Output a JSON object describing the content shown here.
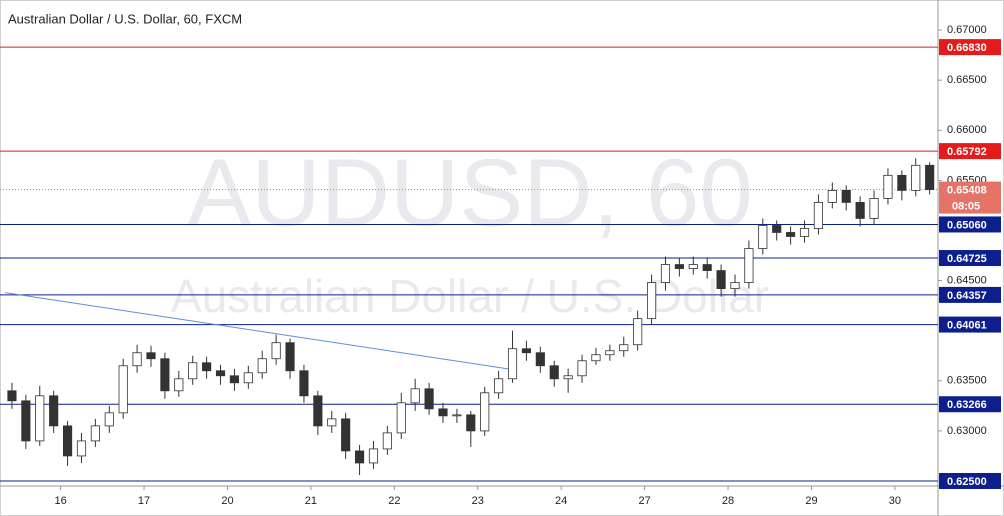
{
  "chart_data": {
    "type": "candlestick",
    "title": "Australian Dollar / U.S. Dollar, 60, FXCM",
    "watermark": "AUDUSD, 60",
    "watermark_subtitle": "Australian Dollar / U.S. Dollar",
    "categories": [
      null,
      null,
      null,
      null,
      "16",
      null,
      null,
      null,
      null,
      null,
      "17",
      null,
      null,
      null,
      null,
      null,
      "20",
      null,
      null,
      null,
      null,
      null,
      "21",
      null,
      null,
      null,
      null,
      null,
      "22",
      null,
      null,
      null,
      null,
      null,
      "23",
      null,
      null,
      null,
      null,
      null,
      "24",
      null,
      null,
      null,
      null,
      null,
      "27",
      null,
      null,
      null,
      null,
      null,
      "28",
      null,
      null,
      null,
      null,
      null,
      "29",
      null,
      null,
      null,
      null,
      null,
      "30",
      null,
      null
    ],
    "open": [
      0.634,
      0.633,
      0.629,
      0.6335,
      0.6305,
      0.6275,
      0.629,
      0.6305,
      0.6318,
      0.6365,
      0.6378,
      0.6372,
      0.634,
      0.6352,
      0.6368,
      0.636,
      0.6355,
      0.6348,
      0.6358,
      0.6372,
      0.6388,
      0.636,
      0.6335,
      0.6305,
      0.6312,
      0.628,
      0.6268,
      0.6282,
      0.6298,
      0.6328,
      0.6342,
      0.6322,
      0.6315,
      0.6316,
      0.63,
      0.6338,
      0.6352,
      0.6382,
      0.6378,
      0.6365,
      0.6352,
      0.6355,
      0.637,
      0.6376,
      0.638,
      0.6386,
      0.6412,
      0.6448,
      0.6466,
      0.6462,
      0.6466,
      0.646,
      0.6442,
      0.6448,
      0.6482,
      0.6505,
      0.6498,
      0.6494,
      0.6502,
      0.6528,
      0.654,
      0.6528,
      0.6512,
      0.6532,
      0.6555,
      0.654,
      0.6565
    ],
    "high": [
      0.6348,
      0.6336,
      0.6345,
      0.634,
      0.631,
      0.6298,
      0.6312,
      0.6325,
      0.6372,
      0.6386,
      0.6385,
      0.6378,
      0.636,
      0.6375,
      0.6374,
      0.6366,
      0.6362,
      0.6365,
      0.638,
      0.6396,
      0.6392,
      0.6366,
      0.634,
      0.632,
      0.6318,
      0.6286,
      0.629,
      0.6305,
      0.6338,
      0.6352,
      0.6348,
      0.6328,
      0.6322,
      0.632,
      0.6344,
      0.636,
      0.64,
      0.639,
      0.6384,
      0.637,
      0.6362,
      0.6376,
      0.6383,
      0.6386,
      0.6394,
      0.642,
      0.6456,
      0.6474,
      0.6472,
      0.6474,
      0.6472,
      0.6466,
      0.6456,
      0.649,
      0.6512,
      0.651,
      0.6504,
      0.651,
      0.6536,
      0.6548,
      0.6545,
      0.6534,
      0.654,
      0.6562,
      0.656,
      0.6572,
      0.6568
    ],
    "low": [
      0.6322,
      0.6282,
      0.6285,
      0.6298,
      0.6265,
      0.6268,
      0.6284,
      0.6298,
      0.6312,
      0.6358,
      0.6364,
      0.6332,
      0.6334,
      0.6346,
      0.6352,
      0.6346,
      0.634,
      0.6342,
      0.6352,
      0.6366,
      0.6352,
      0.6328,
      0.6296,
      0.6298,
      0.6272,
      0.6256,
      0.6262,
      0.6276,
      0.6292,
      0.632,
      0.6316,
      0.6308,
      0.6308,
      0.6284,
      0.6295,
      0.6332,
      0.6348,
      0.637,
      0.6358,
      0.6344,
      0.6338,
      0.6348,
      0.6366,
      0.637,
      0.6374,
      0.638,
      0.6406,
      0.644,
      0.6454,
      0.6456,
      0.6452,
      0.6434,
      0.6434,
      0.6442,
      0.6476,
      0.649,
      0.6486,
      0.6488,
      0.6496,
      0.6522,
      0.652,
      0.6504,
      0.6506,
      0.6526,
      0.653,
      0.6534,
      0.6536
    ],
    "close": [
      0.633,
      0.629,
      0.6335,
      0.6305,
      0.6275,
      0.629,
      0.6305,
      0.6318,
      0.6365,
      0.6378,
      0.6372,
      0.634,
      0.6352,
      0.6368,
      0.636,
      0.6355,
      0.6348,
      0.6358,
      0.6372,
      0.6388,
      0.636,
      0.6335,
      0.6305,
      0.6312,
      0.628,
      0.6268,
      0.6282,
      0.6298,
      0.6328,
      0.6342,
      0.6322,
      0.6315,
      0.6316,
      0.63,
      0.6338,
      0.6352,
      0.6382,
      0.6378,
      0.6365,
      0.6352,
      0.6355,
      0.637,
      0.6376,
      0.638,
      0.6386,
      0.6412,
      0.6448,
      0.6466,
      0.6462,
      0.6466,
      0.646,
      0.6442,
      0.6448,
      0.6482,
      0.6505,
      0.6498,
      0.6494,
      0.6502,
      0.6528,
      0.654,
      0.6528,
      0.6512,
      0.6532,
      0.6555,
      0.654,
      0.6565,
      0.65408
    ],
    "up_color": "#ffffff",
    "down_color": "#333333",
    "wick_color": "#333333",
    "ylim": [
      0.6245,
      0.673
    ],
    "yticks": [
      {
        "value": 0.67,
        "label": "0.67000"
      },
      {
        "value": 0.665,
        "label": "0.66500"
      },
      {
        "value": 0.66,
        "label": "0.66000"
      },
      {
        "value": 0.655,
        "label": "0.65500"
      },
      {
        "value": 0.645,
        "label": "0.64500"
      },
      {
        "value": 0.635,
        "label": "0.63500"
      },
      {
        "value": 0.63,
        "label": "0.63000"
      }
    ],
    "levels": [
      {
        "value": 0.6683,
        "label": "0.66830",
        "color": "#e31b1b"
      },
      {
        "value": 0.65792,
        "label": "0.65792",
        "color": "#e31b1b"
      },
      {
        "value": 0.6506,
        "label": "0.65060",
        "color": "#0d1f8c"
      },
      {
        "value": 0.64725,
        "label": "0.64725",
        "color": "#0d1f8c"
      },
      {
        "value": 0.64357,
        "label": "0.64357",
        "color": "#0d1f8c"
      },
      {
        "value": 0.64061,
        "label": "0.64061",
        "color": "#0d1f8c"
      },
      {
        "value": 0.63266,
        "label": "0.63266",
        "color": "#0d1f8c"
      },
      {
        "value": 0.625,
        "label": "0.62500",
        "color": "#0d1f8c"
      }
    ],
    "last_price": {
      "value": 0.65408,
      "label": "0.65408",
      "countdown": "08:05",
      "color": "#e57368"
    },
    "trend_line": {
      "x": [
        -0.5,
        36.1
      ],
      "y": [
        0.6438,
        0.6361
      ],
      "color": "#5b8fd6"
    }
  }
}
